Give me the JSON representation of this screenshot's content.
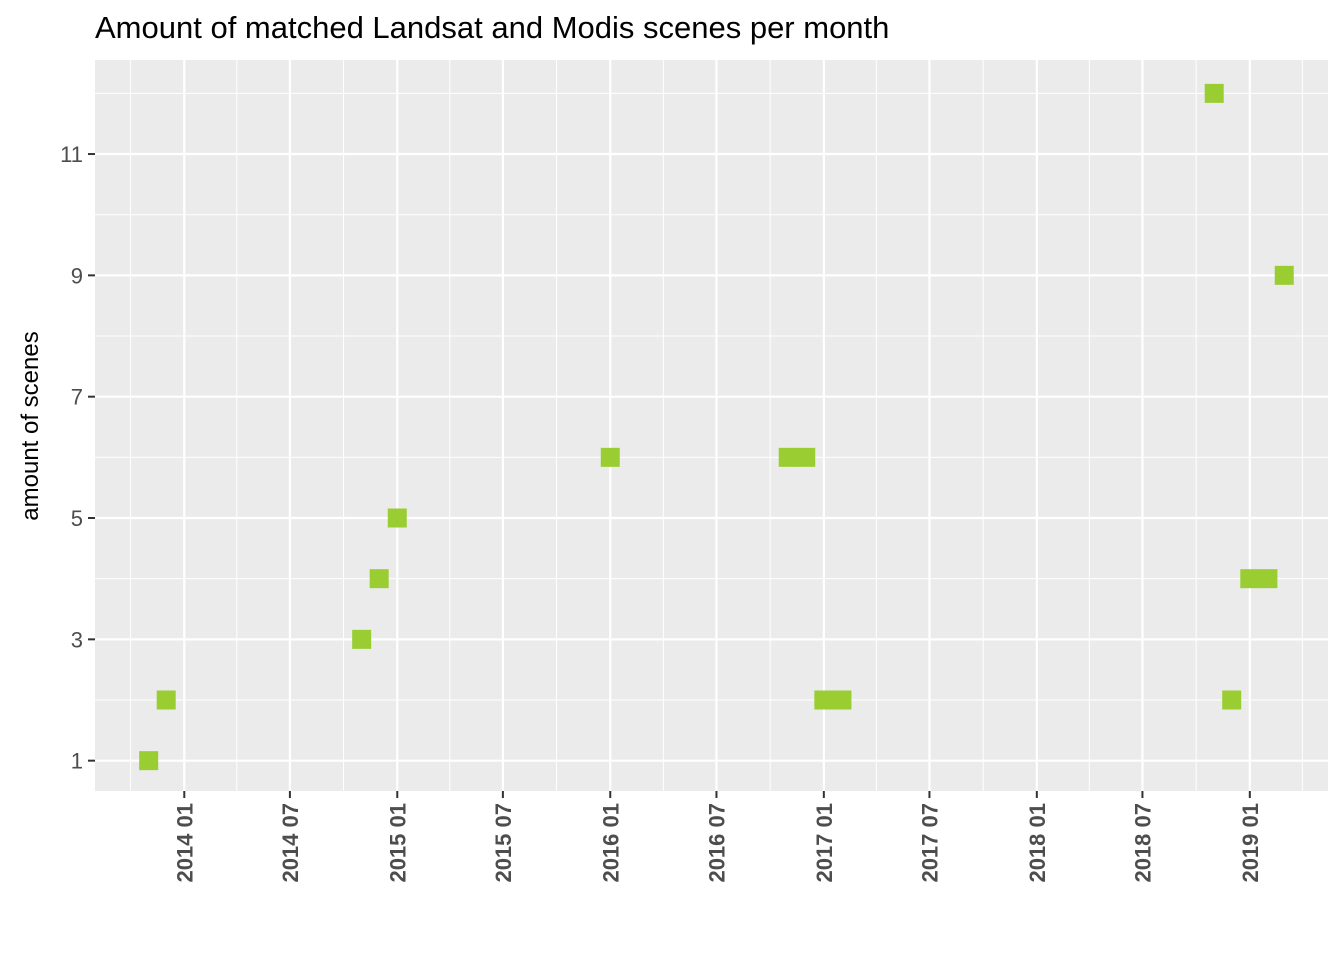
{
  "chart_data": {
    "type": "scatter",
    "title": "Amount of matched Landsat and Modis scenes per month",
    "xlabel": "",
    "ylabel": "amount of scenes",
    "x_type": "date",
    "xlim": [
      "2013-08-01",
      "2019-05-15"
    ],
    "ylim": [
      0.5,
      12.55
    ],
    "y_ticks": [
      1,
      3,
      5,
      7,
      9,
      11
    ],
    "x_ticks": [
      {
        "date": "2014-01-01",
        "label": "2014 01"
      },
      {
        "date": "2014-07-01",
        "label": "2014 07"
      },
      {
        "date": "2015-01-01",
        "label": "2015 01"
      },
      {
        "date": "2015-07-01",
        "label": "2015 07"
      },
      {
        "date": "2016-01-01",
        "label": "2016 01"
      },
      {
        "date": "2016-07-01",
        "label": "2016 07"
      },
      {
        "date": "2017-01-01",
        "label": "2017 01"
      },
      {
        "date": "2017-07-01",
        "label": "2017 07"
      },
      {
        "date": "2018-01-01",
        "label": "2018 01"
      },
      {
        "date": "2018-07-01",
        "label": "2018 07"
      },
      {
        "date": "2019-01-01",
        "label": "2019 01"
      }
    ],
    "grid": true,
    "marker": "square",
    "point_color": "#9ACD32",
    "panel_color": "#EBEBEB",
    "points": [
      {
        "x": "2013-11-01",
        "y": 1
      },
      {
        "x": "2013-12-01",
        "y": 2
      },
      {
        "x": "2014-11-01",
        "y": 3
      },
      {
        "x": "2014-12-01",
        "y": 4
      },
      {
        "x": "2015-01-01",
        "y": 5
      },
      {
        "x": "2016-01-01",
        "y": 6
      },
      {
        "x": "2016-11-01",
        "y": 6
      },
      {
        "x": "2016-12-01",
        "y": 6
      },
      {
        "x": "2017-01-01",
        "y": 2
      },
      {
        "x": "2017-02-01",
        "y": 2
      },
      {
        "x": "2018-11-01",
        "y": 12
      },
      {
        "x": "2018-12-01",
        "y": 2
      },
      {
        "x": "2019-01-01",
        "y": 4
      },
      {
        "x": "2019-02-01",
        "y": 4
      },
      {
        "x": "2019-03-01",
        "y": 9
      }
    ]
  }
}
